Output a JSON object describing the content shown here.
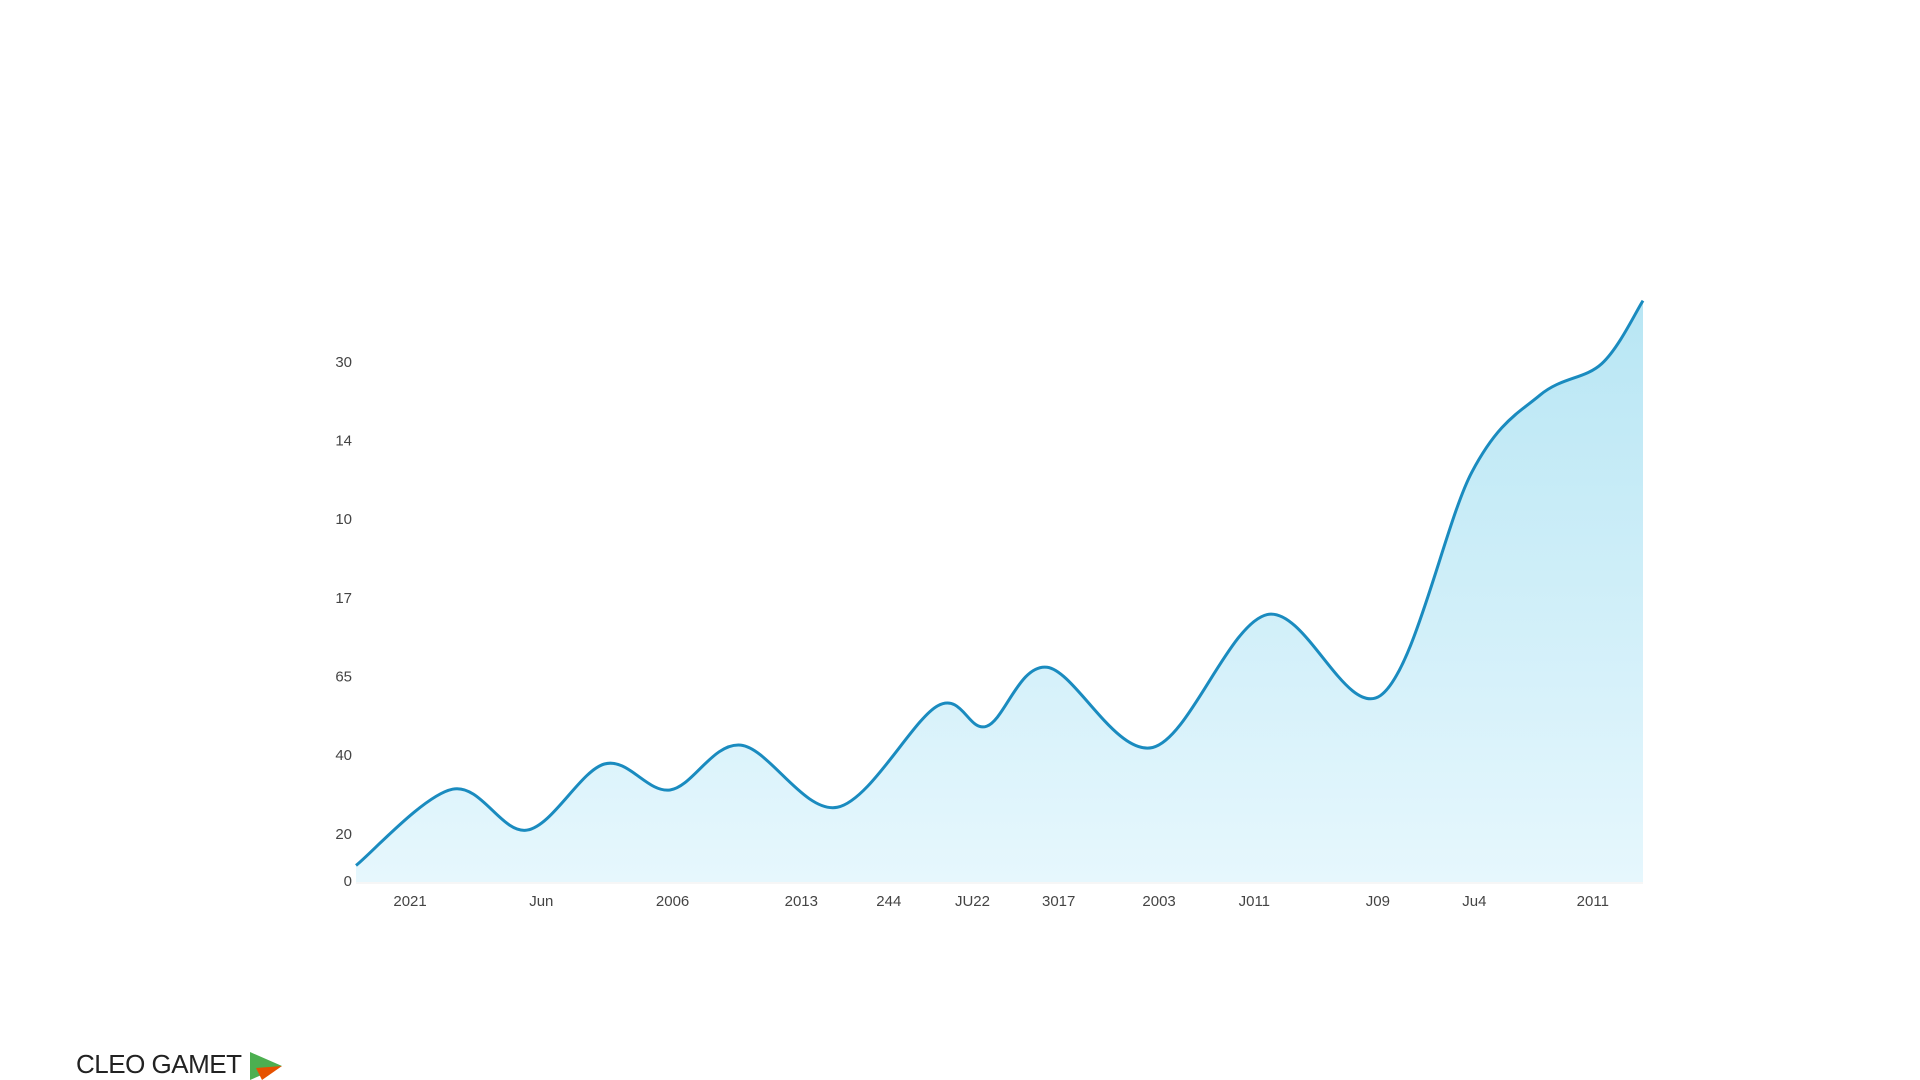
{
  "chart_data": {
    "type": "area",
    "x": [
      0,
      7.5,
      13.3,
      19.3,
      24.4,
      29.9,
      37.4,
      45.2,
      49.0,
      53.7,
      61.9,
      70.8,
      79.6,
      86.7,
      92.0,
      96.8,
      100
    ],
    "series": [
      {
        "color": "#1a8bbf",
        "values": [
          2.1,
          11.8,
          6.6,
          15.0,
          11.7,
          17.4,
          9.5,
          22.4,
          19.8,
          27.3,
          17.1,
          34.0,
          23.7,
          52.1,
          61.9,
          65.9,
          73.9
        ]
      }
    ],
    "xlim": [
      0,
      100
    ],
    "xticks": [
      {
        "value": 4.2,
        "label": "2021"
      },
      {
        "value": 14.4,
        "label": "Jun"
      },
      {
        "value": 24.6,
        "label": "2006"
      },
      {
        "value": 34.6,
        "label": "2013"
      },
      {
        "value": 41.4,
        "label": "244"
      },
      {
        "value": 47.9,
        "label": "JU22"
      },
      {
        "value": 54.6,
        "label": "3017"
      },
      {
        "value": 62.4,
        "label": "2003"
      },
      {
        "value": 69.8,
        "label": "J011"
      },
      {
        "value": 79.4,
        "label": "J09"
      },
      {
        "value": 86.9,
        "label": "Ju4"
      },
      {
        "value": 96.1,
        "label": "2011"
      }
    ],
    "ylim": [
      0,
      75
    ],
    "yticks": [
      0,
      {
        "value": 6,
        "label": "20"
      },
      {
        "value": 16,
        "label": "40"
      },
      {
        "value": 26,
        "label": "65"
      },
      {
        "value": 36,
        "label": "17"
      },
      {
        "value": 46,
        "label": "10"
      },
      {
        "value": 56,
        "label": "14"
      },
      {
        "value": 66,
        "label": "30"
      }
    ],
    "grid": false
  },
  "brand": "CLEO GAMET"
}
